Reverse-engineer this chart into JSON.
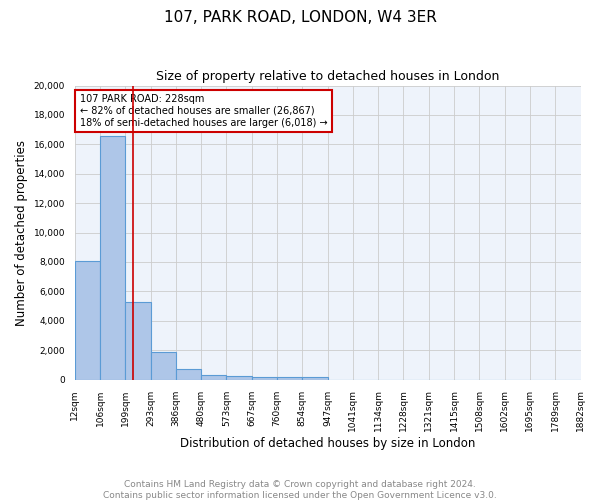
{
  "title1": "107, PARK ROAD, LONDON, W4 3ER",
  "title2": "Size of property relative to detached houses in London",
  "xlabel": "Distribution of detached houses by size in London",
  "ylabel": "Number of detached properties",
  "footer": "Contains HM Land Registry data © Crown copyright and database right 2024.\nContains public sector information licensed under the Open Government Licence v3.0.",
  "bins": [
    "12sqm",
    "106sqm",
    "199sqm",
    "293sqm",
    "386sqm",
    "480sqm",
    "573sqm",
    "667sqm",
    "760sqm",
    "854sqm",
    "947sqm",
    "1041sqm",
    "1134sqm",
    "1228sqm",
    "1321sqm",
    "1415sqm",
    "1508sqm",
    "1602sqm",
    "1695sqm",
    "1789sqm",
    "1882sqm"
  ],
  "values": [
    8100,
    16600,
    5300,
    1850,
    700,
    320,
    240,
    180,
    170,
    150,
    0,
    0,
    0,
    0,
    0,
    0,
    0,
    0,
    0,
    0
  ],
  "bar_color": "#aec6e8",
  "bar_edge_color": "#5b9bd5",
  "property_line_color": "#cc0000",
  "annotation_text": "107 PARK ROAD: 228sqm\n← 82% of detached houses are smaller (26,867)\n18% of semi-detached houses are larger (6,018) →",
  "annotation_box_color": "white",
  "annotation_box_edge_color": "#cc0000",
  "ylim": [
    0,
    20000
  ],
  "yticks": [
    0,
    2000,
    4000,
    6000,
    8000,
    10000,
    12000,
    14000,
    16000,
    18000,
    20000
  ],
  "grid_color": "#cccccc",
  "bg_color": "#eef3fb",
  "title1_fontsize": 11,
  "title2_fontsize": 9,
  "xlabel_fontsize": 8.5,
  "ylabel_fontsize": 8.5,
  "footer_fontsize": 6.5,
  "footer_color": "#888888",
  "tick_fontsize": 6.5,
  "annot_fontsize": 7
}
